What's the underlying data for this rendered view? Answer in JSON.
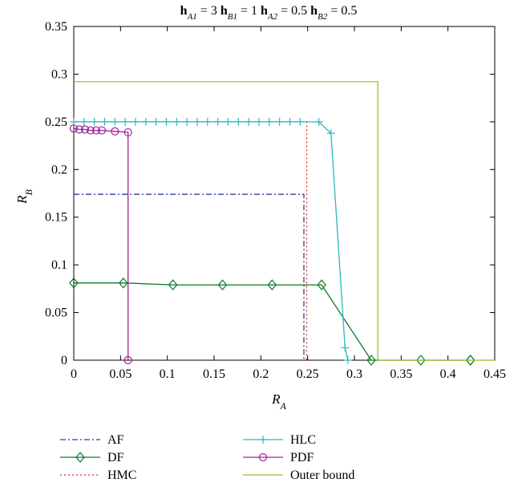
{
  "chart_data": {
    "type": "line",
    "title": "h_A1 = 3 h_B1 = 1 h_A2 = 0.5 h_B2 = 0.5",
    "title_parts": [
      {
        "text": "h",
        "bold": true
      },
      {
        "text": "A1",
        "sub": true
      },
      {
        "text": " = 3 "
      },
      {
        "text": "h",
        "bold": true
      },
      {
        "text": "B1",
        "sub": true
      },
      {
        "text": " = 1 "
      },
      {
        "text": "h",
        "bold": true
      },
      {
        "text": "A2",
        "sub": true
      },
      {
        "text": " = 0.5 "
      },
      {
        "text": "h",
        "bold": true
      },
      {
        "text": "B2",
        "sub": true
      },
      {
        "text": " = 0.5"
      }
    ],
    "xlabel": "R_A",
    "ylabel": "R_B",
    "xlabel_parts": [
      {
        "text": "R"
      },
      {
        "text": "A",
        "sub": true
      }
    ],
    "ylabel_parts": [
      {
        "text": "R"
      },
      {
        "text": "B",
        "sub": true
      }
    ],
    "xlim": [
      0,
      0.45
    ],
    "ylim": [
      0,
      0.35
    ],
    "xticks": [
      0,
      0.05,
      0.1,
      0.15,
      0.2,
      0.25,
      0.3,
      0.35,
      0.4,
      0.45
    ],
    "xtick_labels": [
      "0",
      "0.05",
      "0.1",
      "0.15",
      "0.2",
      "0.25",
      "0.3",
      "0.35",
      "0.4",
      "0.45"
    ],
    "yticks": [
      0,
      0.05,
      0.1,
      0.15,
      0.2,
      0.25,
      0.3,
      0.35
    ],
    "ytick_labels": [
      "0",
      "0.05",
      "0.1",
      "0.15",
      "0.2",
      "0.25",
      "0.3",
      "0.35"
    ],
    "grid": false,
    "legend_position": "below plot, two columns",
    "series": [
      {
        "name": "AF",
        "color": "#2f3ea0",
        "dash": "dashdot",
        "marker": "none",
        "x": [
          0,
          0.246,
          0.246
        ],
        "y": [
          0.174,
          0.174,
          0
        ]
      },
      {
        "name": "DF",
        "color": "#0c7a2a",
        "dash": "solid",
        "marker": "diamond",
        "x": [
          0,
          0.053,
          0.106,
          0.159,
          0.212,
          0.265,
          0.318,
          0.371,
          0.424,
          0.424
        ],
        "y": [
          0.081,
          0.081,
          0.079,
          0.079,
          0.079,
          0.079,
          0,
          0,
          0,
          0
        ]
      },
      {
        "name": "HMC",
        "color": "#e02a2a",
        "dash": "dotted",
        "marker": "none",
        "x": [
          0,
          0.249,
          0.249
        ],
        "y": [
          0.25,
          0.25,
          0
        ]
      },
      {
        "name": "HLC",
        "color": "#2ab8c0",
        "dash": "solid",
        "marker": "plus",
        "x": [
          0,
          0.011,
          0.022,
          0.033,
          0.044,
          0.055,
          0.066,
          0.077,
          0.088,
          0.099,
          0.11,
          0.121,
          0.132,
          0.143,
          0.154,
          0.165,
          0.176,
          0.187,
          0.198,
          0.209,
          0.22,
          0.231,
          0.242,
          0.262,
          0.275,
          0.29,
          0.293
        ],
        "y": [
          0.25,
          0.25,
          0.25,
          0.25,
          0.25,
          0.25,
          0.25,
          0.25,
          0.25,
          0.25,
          0.25,
          0.25,
          0.25,
          0.25,
          0.25,
          0.25,
          0.25,
          0.25,
          0.25,
          0.25,
          0.25,
          0.25,
          0.25,
          0.25,
          0.238,
          0.013,
          0
        ]
      },
      {
        "name": "PDF",
        "color": "#a0249a",
        "dash": "solid",
        "marker": "circle",
        "x": [
          0,
          0.006,
          0.012,
          0.018,
          0.024,
          0.03,
          0.044,
          0.058,
          0.058
        ],
        "y": [
          0.243,
          0.242,
          0.242,
          0.241,
          0.241,
          0.241,
          0.24,
          0.239,
          0
        ]
      },
      {
        "name": "Outer bound",
        "color": "#a8b82a",
        "dash": "solid",
        "marker": "none",
        "x": [
          0,
          0.325,
          0.325,
          0.45
        ],
        "y": [
          0.292,
          0.292,
          0,
          0
        ]
      }
    ]
  }
}
